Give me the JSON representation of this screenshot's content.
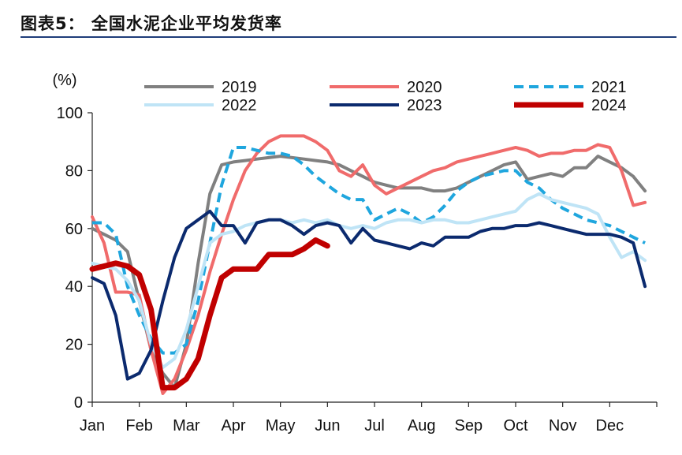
{
  "figure": {
    "title": "图表5：  全国水泥企业平均发货率"
  },
  "chart_data": {
    "type": "line",
    "ylabel": "(%)",
    "ylim": [
      0,
      100
    ],
    "yticks": [
      0,
      20,
      40,
      60,
      80,
      100
    ],
    "xlim": [
      0,
      12
    ],
    "x_tick_labels": [
      "Jan",
      "Feb",
      "Mar",
      "Apr",
      "May",
      "Jun",
      "Jul",
      "Aug",
      "Sep",
      "Oct",
      "Nov",
      "Dec"
    ],
    "grid": false,
    "legend_position": "top",
    "series": [
      {
        "name": "2019",
        "color": "#808080",
        "dash": "",
        "width": 4,
        "x": [
          0,
          0.25,
          0.5,
          0.75,
          1.0,
          1.25,
          1.5,
          1.75,
          2.0,
          2.25,
          2.5,
          2.75,
          3.0,
          3.25,
          3.5,
          3.75,
          4.0,
          4.25,
          4.5,
          4.75,
          5.0,
          5.25,
          5.5,
          5.75,
          6.0,
          6.25,
          6.5,
          6.75,
          7.0,
          7.25,
          7.5,
          7.75,
          8.0,
          8.25,
          8.5,
          8.75,
          9.0,
          9.25,
          9.5,
          9.75,
          10.0,
          10.25,
          10.5,
          10.75,
          11.0,
          11.25,
          11.5,
          11.75
        ],
        "y": [
          60,
          58,
          56,
          52,
          35,
          18,
          10,
          5,
          20,
          48,
          72,
          82,
          83,
          83.5,
          84,
          84.5,
          85,
          84.5,
          84,
          83.5,
          83,
          82,
          80,
          78,
          76,
          75,
          74,
          74,
          74,
          73,
          73,
          74,
          76,
          78,
          80,
          82,
          83,
          77,
          78,
          79,
          78,
          81,
          81,
          85,
          83,
          81,
          78,
          73
        ]
      },
      {
        "name": "2020",
        "color": "#f06b6b",
        "dash": "",
        "width": 4,
        "x": [
          0,
          0.25,
          0.5,
          0.75,
          1.0,
          1.25,
          1.5,
          1.75,
          2.0,
          2.25,
          2.5,
          2.75,
          3.0,
          3.25,
          3.5,
          3.75,
          4.0,
          4.25,
          4.5,
          4.75,
          5.0,
          5.25,
          5.5,
          5.75,
          6.0,
          6.25,
          6.5,
          6.75,
          7.0,
          7.25,
          7.5,
          7.75,
          8.0,
          8.25,
          8.5,
          8.75,
          9.0,
          9.25,
          9.5,
          9.75,
          10.0,
          10.25,
          10.5,
          10.75,
          11.0,
          11.25,
          11.5,
          11.75
        ],
        "y": [
          64,
          55,
          38,
          38,
          37,
          18,
          3,
          8,
          18,
          30,
          45,
          58,
          70,
          80,
          86,
          90,
          92,
          92,
          92,
          90,
          87,
          80,
          78,
          82,
          75,
          72,
          74,
          76,
          78,
          80,
          81,
          83,
          84,
          85,
          86,
          87,
          88,
          87,
          85,
          86,
          86,
          87,
          87,
          89,
          88,
          80,
          68,
          69
        ]
      },
      {
        "name": "2021",
        "color": "#1fa6de",
        "dash": "12 7",
        "width": 4,
        "x": [
          0,
          0.25,
          0.5,
          0.75,
          1.0,
          1.25,
          1.5,
          1.75,
          2.0,
          2.25,
          2.5,
          2.75,
          3.0,
          3.25,
          3.5,
          3.75,
          4.0,
          4.25,
          4.5,
          4.75,
          5.0,
          5.25,
          5.5,
          5.75,
          6.0,
          6.25,
          6.5,
          6.75,
          7.0,
          7.25,
          7.5,
          7.75,
          8.0,
          8.25,
          8.5,
          8.75,
          9.0,
          9.25,
          9.5,
          9.75,
          10.0,
          10.25,
          10.5,
          10.75,
          11.0,
          11.25,
          11.5,
          11.75
        ],
        "y": [
          62,
          62,
          58,
          40,
          30,
          22,
          17,
          17,
          20,
          35,
          55,
          75,
          88,
          88,
          87,
          86,
          86,
          85,
          82,
          78,
          75,
          72,
          70,
          70,
          63,
          65,
          67,
          65,
          62,
          64,
          68,
          73,
          76,
          78,
          79,
          80,
          80,
          76,
          74,
          70,
          67,
          65,
          63,
          62,
          61,
          59,
          57,
          55
        ]
      },
      {
        "name": "2022",
        "color": "#bfe4f6",
        "dash": "",
        "width": 4,
        "x": [
          0,
          0.25,
          0.5,
          0.75,
          1.0,
          1.25,
          1.5,
          1.75,
          2.0,
          2.25,
          2.5,
          2.75,
          3.0,
          3.25,
          3.5,
          3.75,
          4.0,
          4.25,
          4.5,
          4.75,
          5.0,
          5.25,
          5.5,
          5.75,
          6.0,
          6.25,
          6.5,
          6.75,
          7.0,
          7.25,
          7.5,
          7.75,
          8.0,
          8.25,
          8.5,
          8.75,
          9.0,
          9.25,
          9.5,
          9.75,
          10.0,
          10.25,
          10.5,
          10.75,
          11.0,
          11.25,
          11.5,
          11.75
        ],
        "y": [
          48,
          47,
          46,
          42,
          35,
          20,
          12,
          15,
          25,
          40,
          55,
          58,
          59,
          61,
          62,
          63,
          63,
          62,
          63,
          62,
          63,
          61,
          60,
          61,
          60,
          62,
          63,
          63,
          62,
          63,
          63,
          62,
          62,
          63,
          64,
          65,
          66,
          70,
          72,
          70,
          69,
          68,
          67,
          65,
          57,
          50,
          52,
          49
        ]
      },
      {
        "name": "2023",
        "color": "#0b2a6e",
        "dash": "",
        "width": 4,
        "x": [
          0,
          0.25,
          0.5,
          0.75,
          1.0,
          1.25,
          1.5,
          1.75,
          2.0,
          2.25,
          2.5,
          2.75,
          3.0,
          3.25,
          3.5,
          3.75,
          4.0,
          4.25,
          4.5,
          4.75,
          5.0,
          5.25,
          5.5,
          5.75,
          6.0,
          6.25,
          6.5,
          6.75,
          7.0,
          7.25,
          7.5,
          7.75,
          8.0,
          8.25,
          8.5,
          8.75,
          9.0,
          9.25,
          9.5,
          9.75,
          10.0,
          10.25,
          10.5,
          10.75,
          11.0,
          11.25,
          11.5,
          11.75
        ],
        "y": [
          43,
          41,
          30,
          8,
          10,
          18,
          35,
          50,
          60,
          63,
          66,
          61,
          61,
          55,
          62,
          63,
          63,
          61,
          58,
          61,
          62,
          61,
          55,
          60,
          56,
          55,
          54,
          53,
          55,
          54,
          57,
          57,
          57,
          59,
          60,
          60,
          61,
          61,
          62,
          61,
          60,
          59,
          58,
          58,
          58,
          57,
          55,
          40
        ]
      },
      {
        "name": "2024",
        "color": "#c00000",
        "dash": "",
        "width": 7,
        "x": [
          0,
          0.25,
          0.5,
          0.75,
          1.0,
          1.25,
          1.5,
          1.75,
          2.0,
          2.25,
          2.5,
          2.75,
          3.0,
          3.25,
          3.5,
          3.75,
          4.0,
          4.25,
          4.5,
          4.75,
          5.0
        ],
        "y": [
          46,
          47,
          48,
          47,
          44,
          32,
          5,
          5,
          8,
          15,
          30,
          43,
          46,
          46,
          46,
          51,
          51,
          51,
          53,
          56,
          54
        ]
      }
    ]
  }
}
